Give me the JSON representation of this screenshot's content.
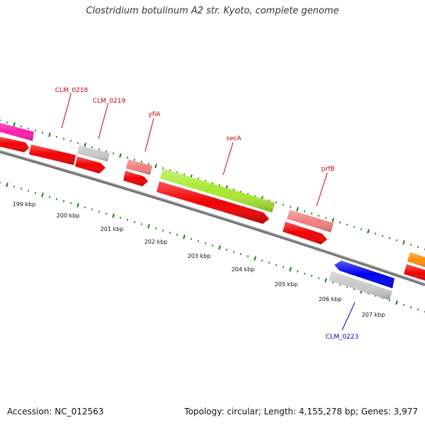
{
  "title": "Clostridium botulinum A2 str. Kyoto, complete genome",
  "footer": {
    "accession": "Accession: NC_012563",
    "topology": "Topology: circular; Length: 4,155,278 bp; Genes: 3,977"
  },
  "colors": {
    "backbone": "#7f7f7f",
    "tick": "#1a7a1a",
    "label_red": "#cc0000",
    "label_blue": "#0000cc",
    "red": "#f00000",
    "magenta": "#ff1cae",
    "gray": "#c8c8c8",
    "pink": "#f08080",
    "lime": "#a8e830",
    "blue": "#0000f0",
    "orange": "#ff8c00"
  },
  "ticks": [
    {
      "label": "199 kbp"
    },
    {
      "label": "200 kbp"
    },
    {
      "label": "201 kbp"
    },
    {
      "label": "202 kbp"
    },
    {
      "label": "203 kbp"
    },
    {
      "label": "204 kbp"
    },
    {
      "label": "205 kbp"
    },
    {
      "label": "206 kbp"
    },
    {
      "label": "207 kbp"
    }
  ],
  "gene_labels": [
    {
      "name": "CLM_0218"
    },
    {
      "name": "CLM_0219"
    },
    {
      "name": "yfiA"
    },
    {
      "name": "secA"
    },
    {
      "name": "prfB"
    },
    {
      "name": "CLM_0223"
    }
  ]
}
